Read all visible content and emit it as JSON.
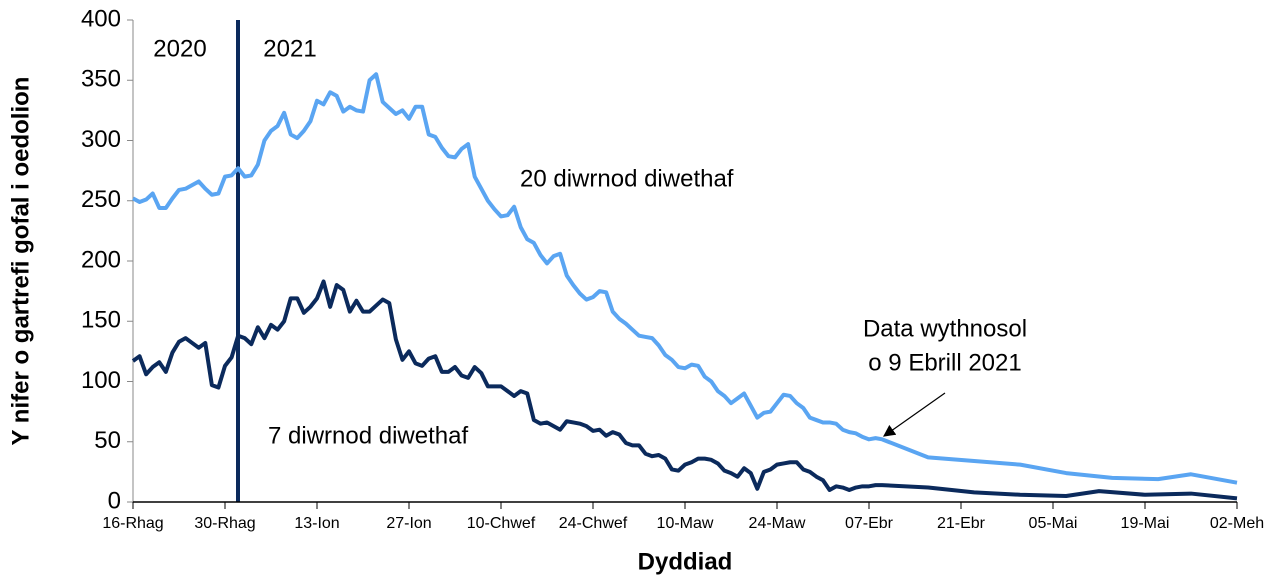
{
  "chart_data": {
    "type": "line",
    "xlabel": "Dyddiad",
    "ylabel": "Y nifer o gartrefi gofal i oedolion",
    "annotations": [
      "2020",
      "2021",
      "20 diwrnod diwethaf",
      "7 diwrnod diwethaf",
      "Data wythnosol",
      "o 9 Ebrill 2021"
    ],
    "xlim": [
      0,
      168
    ],
    "xticks": [
      {
        "value": 0,
        "label": "16-Rhag"
      },
      {
        "value": 14,
        "label": "30-Rhag"
      },
      {
        "value": 28,
        "label": "13-Ion"
      },
      {
        "value": 42,
        "label": "27-Ion"
      },
      {
        "value": 56,
        "label": "10-Chwef"
      },
      {
        "value": 70,
        "label": "24-Chwef"
      },
      {
        "value": 84,
        "label": "10-Maw"
      },
      {
        "value": 98,
        "label": "24-Maw"
      },
      {
        "value": 112,
        "label": "07-Ebr"
      },
      {
        "value": 126,
        "label": "21-Ebr"
      },
      {
        "value": 140,
        "label": "05-Mai"
      },
      {
        "value": 154,
        "label": "19-Mai"
      },
      {
        "value": 168,
        "label": "02-Meh"
      }
    ],
    "ylim": [
      0,
      400
    ],
    "yticks": [
      0,
      50,
      100,
      150,
      200,
      250,
      300,
      350,
      400
    ],
    "series": [
      {
        "name": "20 diwrnod diwethaf",
        "color": "#5aa5f2",
        "x": [
          0,
          1,
          2,
          3,
          4,
          5,
          6,
          7,
          8,
          9,
          10,
          11,
          12,
          13,
          14,
          15,
          16,
          17,
          18,
          19,
          20,
          21,
          22,
          23,
          24,
          25,
          26,
          27,
          28,
          29,
          30,
          31,
          32,
          33,
          34,
          35,
          36,
          37,
          38,
          39,
          40,
          41,
          42,
          43,
          44,
          45,
          46,
          47,
          48,
          49,
          50,
          51,
          52,
          53,
          54,
          55,
          56,
          57,
          58,
          59,
          60,
          61,
          62,
          63,
          64,
          65,
          66,
          67,
          68,
          69,
          70,
          71,
          72,
          73,
          74,
          75,
          76,
          77,
          78,
          79,
          80,
          81,
          82,
          83,
          84,
          85,
          86,
          87,
          88,
          89,
          90,
          91,
          92,
          93,
          94,
          95,
          96,
          97,
          98,
          99,
          100,
          101,
          102,
          103,
          104,
          105,
          106,
          107,
          108,
          109,
          110,
          111,
          112,
          113,
          114,
          121,
          128,
          135,
          142,
          149,
          156,
          161,
          168
        ],
        "values": [
          252,
          249,
          251,
          256,
          244,
          244,
          252,
          259,
          260,
          263,
          266,
          260,
          255,
          256,
          270,
          271,
          277,
          270,
          271,
          280,
          300,
          308,
          312,
          323,
          305,
          302,
          308,
          316,
          333,
          330,
          340,
          337,
          324,
          328,
          325,
          324,
          350,
          355,
          332,
          327,
          322,
          325,
          318,
          328,
          328,
          305,
          303,
          294,
          287,
          286,
          293,
          297,
          270,
          260,
          250,
          243,
          237,
          238,
          245,
          228,
          218,
          215,
          205,
          198,
          204,
          206,
          188,
          180,
          173,
          168,
          170,
          175,
          174,
          158,
          152,
          148,
          143,
          138,
          137,
          136,
          130,
          122,
          118,
          112,
          111,
          114,
          113,
          104,
          100,
          92,
          88,
          82,
          86,
          90,
          80,
          70,
          74,
          75,
          82,
          89,
          88,
          82,
          78,
          70,
          68,
          66,
          66,
          65,
          60,
          58,
          57,
          54,
          52,
          53,
          52,
          37,
          34,
          31,
          24,
          20,
          19,
          23,
          16
        ]
      },
      {
        "name": "7 diwrnod diwethaf",
        "color": "#0b2a5c",
        "x": [
          0,
          1,
          2,
          3,
          4,
          5,
          6,
          7,
          8,
          9,
          10,
          11,
          12,
          13,
          14,
          15,
          16,
          17,
          18,
          19,
          20,
          21,
          22,
          23,
          24,
          25,
          26,
          27,
          28,
          29,
          30,
          31,
          32,
          33,
          34,
          35,
          36,
          37,
          38,
          39,
          40,
          41,
          42,
          43,
          44,
          45,
          46,
          47,
          48,
          49,
          50,
          51,
          52,
          53,
          54,
          55,
          56,
          57,
          58,
          59,
          60,
          61,
          62,
          63,
          64,
          65,
          66,
          67,
          68,
          69,
          70,
          71,
          72,
          73,
          74,
          75,
          76,
          77,
          78,
          79,
          80,
          81,
          82,
          83,
          84,
          85,
          86,
          87,
          88,
          89,
          90,
          91,
          92,
          93,
          94,
          95,
          96,
          97,
          98,
          99,
          100,
          101,
          102,
          103,
          104,
          105,
          106,
          107,
          108,
          109,
          110,
          111,
          112,
          113,
          114,
          121,
          128,
          135,
          142,
          147,
          154,
          161,
          168
        ],
        "values": [
          117,
          121,
          106,
          112,
          116,
          108,
          124,
          133,
          136,
          132,
          128,
          132,
          97,
          95,
          113,
          120,
          138,
          136,
          131,
          145,
          136,
          147,
          143,
          150,
          169,
          169,
          157,
          162,
          169,
          183,
          162,
          180,
          176,
          158,
          167,
          158,
          158,
          163,
          168,
          165,
          135,
          118,
          125,
          115,
          113,
          119,
          121,
          108,
          108,
          112,
          105,
          103,
          112,
          107,
          96,
          96,
          96,
          92,
          88,
          92,
          90,
          68,
          65,
          66,
          63,
          60,
          67,
          66,
          65,
          63,
          59,
          60,
          55,
          58,
          56,
          49,
          47,
          47,
          40,
          38,
          39,
          36,
          27,
          26,
          31,
          33,
          36,
          36,
          35,
          32,
          26,
          24,
          21,
          28,
          24,
          11,
          25,
          27,
          31,
          32,
          33,
          33,
          27,
          25,
          21,
          18,
          10,
          13,
          12,
          10,
          12,
          13,
          13,
          14,
          14,
          12,
          8,
          6,
          5,
          9,
          6,
          7,
          3
        ]
      }
    ]
  }
}
